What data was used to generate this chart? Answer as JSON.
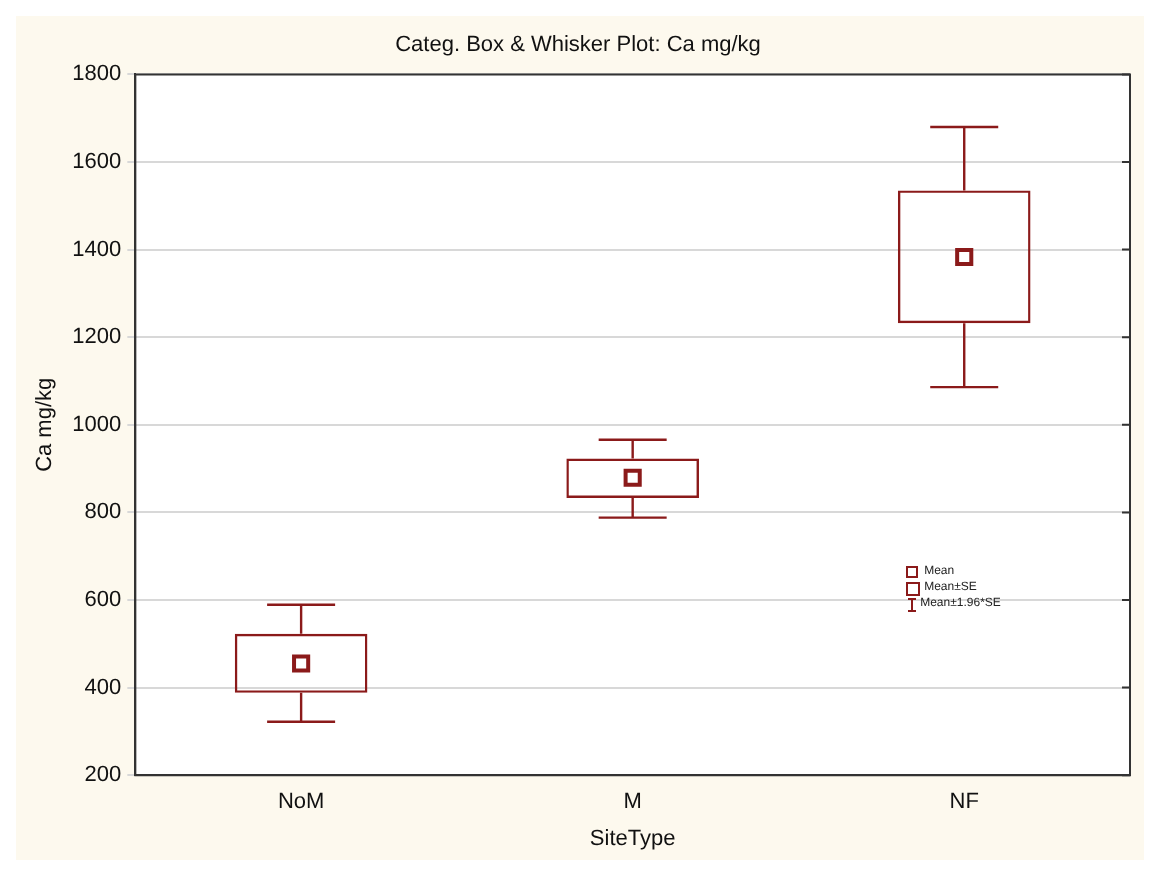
{
  "chart_data": {
    "type": "box",
    "title": "Categ. Box & Whisker Plot: Ca mg/kg",
    "xlabel": "SiteType",
    "ylabel": "Ca mg/kg",
    "categories": [
      "NoM",
      "M",
      "NF"
    ],
    "series": [
      {
        "color": "#8b1a1a",
        "boxes": [
          {
            "low": 322,
            "q1": 388,
            "median": 455,
            "q3": 523,
            "high": 589
          },
          {
            "low": 788,
            "q1": 833,
            "median": 879,
            "q3": 923,
            "high": 966
          },
          {
            "low": 1086,
            "q1": 1232,
            "median": 1383,
            "q3": 1535,
            "high": 1680
          }
        ]
      }
    ],
    "ylim": [
      200,
      1800
    ],
    "yticks": [
      200,
      400,
      600,
      800,
      1000,
      1200,
      1400,
      1600,
      1800
    ],
    "grid": "y",
    "marker": "square",
    "annotations": [
      "Mean",
      "Mean±SE",
      "Mean±1.96*SE"
    ]
  }
}
